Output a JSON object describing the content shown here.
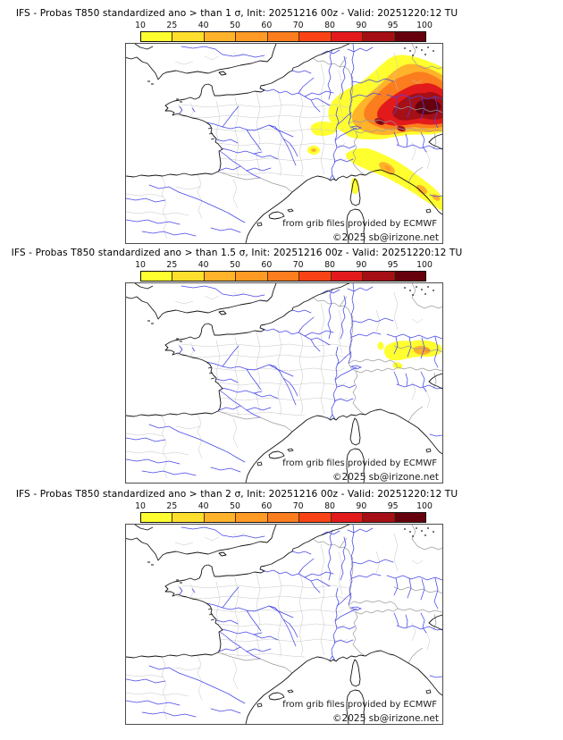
{
  "panels": [
    {
      "id": "sigma-1",
      "title": "IFS - Probas T850  standardized ano > than 1 σ, Init: 20251216 00z - Valid: 20251220:12 TU"
    },
    {
      "id": "sigma-1.5",
      "title": "IFS - Probas T850  standardized ano > than 1.5 σ, Init: 20251216 00z - Valid: 20251220:12 TU"
    },
    {
      "id": "sigma-2",
      "title": "IFS - Probas T850  standardized ano > than 2 σ, Init: 20251216 00z - Valid: 20251220:12 TU"
    }
  ],
  "colorbar": {
    "ticks": [
      "10",
      "25",
      "40",
      "50",
      "60",
      "70",
      "80",
      "90",
      "95",
      "100"
    ],
    "colors": [
      "#ffff30",
      "#ffdf2e",
      "#ffb32a",
      "#ff9a24",
      "#fb7d1e",
      "#f94316",
      "#e31a1c",
      "#a50f15",
      "#67000d"
    ]
  },
  "credits": {
    "line1": "from grib files provided by ECMWF",
    "line2": "©2025 sb@irizone.net"
  },
  "map_colors": {
    "river": "#4646e8",
    "coastline": "#151515",
    "country_border": "#9a9a9a",
    "department_border": "#c6c6c6",
    "frame": "#4d4d4d"
  }
}
